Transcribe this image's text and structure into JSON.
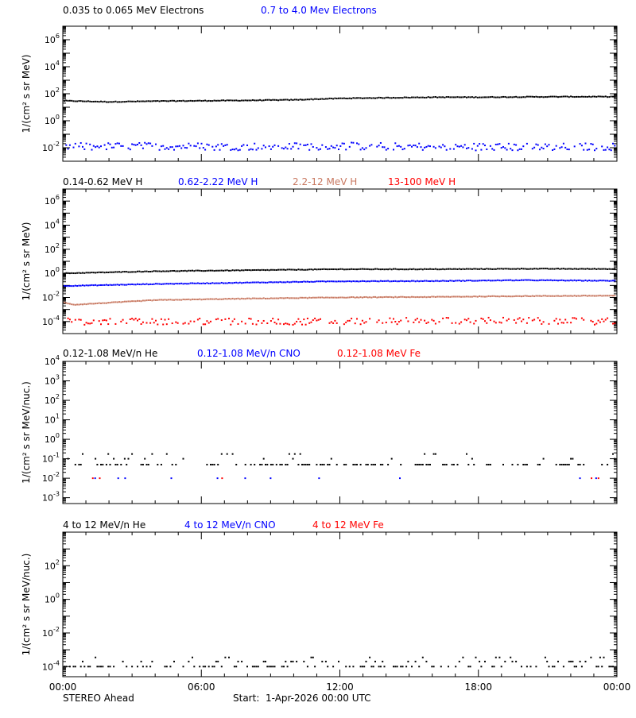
{
  "panels": [
    {
      "legend": [
        {
          "label": "0.035 to 0.065 MeV Electrons",
          "color": "#000000"
        },
        {
          "label": "0.7 to 4.0 Mev Electrons",
          "color": "#0000ff"
        }
      ],
      "ylabel": "1/(cm² s sr MeV)"
    },
    {
      "legend": [
        {
          "label": "0.14-0.62 MeV H",
          "color": "#000000"
        },
        {
          "label": "0.62-2.22 MeV H",
          "color": "#0000ff"
        },
        {
          "label": "2.2-12 MeV H",
          "color": "#c87860"
        },
        {
          "label": "13-100 MeV H",
          "color": "#ff0000"
        }
      ],
      "ylabel": "1/(cm² s sr MeV)"
    },
    {
      "legend": [
        {
          "label": "0.12-1.08 MeV/n He",
          "color": "#000000"
        },
        {
          "label": "0.12-1.08 MeV/n CNO",
          "color": "#0000ff"
        },
        {
          "label": "0.12-1.08 MeV Fe",
          "color": "#ff0000"
        }
      ],
      "ylabel": "1/(cm² s sr MeV/nuc.)"
    },
    {
      "legend": [
        {
          "label": "4 to 12 MeV/n He",
          "color": "#000000"
        },
        {
          "label": "4 to 12 MeV/n CNO",
          "color": "#0000ff"
        },
        {
          "label": "4 to 12 MeV Fe",
          "color": "#ff0000"
        }
      ],
      "ylabel": "1/(cm² s sr MeV/nuc.)"
    }
  ],
  "footer": {
    "spacecraft": "STEREO Ahead",
    "start": "Start:  1-Apr-2026 00:00 UTC"
  },
  "chart_data": [
    {
      "type": "scatter",
      "x_unit": "hours since start",
      "x_range": [
        0,
        24
      ],
      "x_ticks": [
        "00:00",
        "06:00",
        "12:00",
        "18:00",
        "00:00"
      ],
      "y_scale": "log",
      "y_range": [
        0.001,
        10000000
      ],
      "y_tick_exponents": [
        -2,
        0,
        2,
        4,
        6
      ],
      "series": [
        {
          "name": "0.035 to 0.065 MeV Electrons",
          "color": "#000000",
          "density": 1.0,
          "x": [
            0,
            2,
            4,
            6,
            8,
            10,
            12,
            14,
            16,
            18,
            20,
            22,
            24
          ],
          "y": [
            30,
            25,
            28,
            30,
            32,
            35,
            45,
            50,
            55,
            55,
            58,
            60,
            60
          ]
        },
        {
          "name": "0.7 to 4.0 Mev Electrons",
          "color": "#0000ff",
          "density": 0.85,
          "x": [
            0,
            4,
            8,
            12,
            16,
            20,
            24
          ],
          "y": [
            0.012,
            0.013,
            0.012,
            0.013,
            0.012,
            0.011,
            0.012
          ]
        }
      ]
    },
    {
      "type": "scatter",
      "x_unit": "hours since start",
      "x_range": [
        0,
        24
      ],
      "x_ticks": [
        "00:00",
        "06:00",
        "12:00",
        "18:00",
        "00:00"
      ],
      "y_scale": "log",
      "y_range": [
        1e-05,
        10000000
      ],
      "y_tick_exponents": [
        -4,
        -2,
        0,
        2,
        4,
        6
      ],
      "series": [
        {
          "name": "0.14-0.62 MeV H",
          "color": "#000000",
          "density": 1.0,
          "x": [
            0,
            4,
            8,
            12,
            16,
            20,
            24
          ],
          "y": [
            1.0,
            1.5,
            1.8,
            2.2,
            2.2,
            2.4,
            2.3
          ]
        },
        {
          "name": "0.62-2.22 MeV H",
          "color": "#0000ff",
          "density": 1.0,
          "x": [
            0,
            4,
            8,
            12,
            16,
            20,
            24
          ],
          "y": [
            0.09,
            0.13,
            0.17,
            0.22,
            0.23,
            0.27,
            0.24
          ]
        },
        {
          "name": "2.2-12 MeV H",
          "color": "#c87860",
          "density": 1.0,
          "x": [
            0,
            0.5,
            4,
            8,
            12,
            16,
            20,
            24
          ],
          "y": [
            0.004,
            0.0025,
            0.006,
            0.008,
            0.01,
            0.011,
            0.013,
            0.014
          ]
        },
        {
          "name": "13-100 MeV H",
          "color": "#ff0000",
          "density": 0.7,
          "x": [
            0,
            6,
            12,
            18,
            24
          ],
          "y": [
            0.0001,
            0.0001,
            0.0001,
            0.00012,
            0.0001
          ]
        }
      ]
    },
    {
      "type": "scatter",
      "x_unit": "hours since start",
      "x_range": [
        0,
        24
      ],
      "x_ticks": [
        "00:00",
        "06:00",
        "12:00",
        "18:00",
        "00:00"
      ],
      "y_scale": "log",
      "y_range": [
        0.0005,
        10000
      ],
      "y_tick_exponents": [
        -3,
        -2,
        -1,
        0,
        1,
        2,
        3,
        4
      ],
      "series": [
        {
          "name": "0.12-1.08 MeV/n He",
          "color": "#000000",
          "density": 0.45,
          "x": [
            0,
            24
          ],
          "y": [
            0.05,
            0.05
          ]
        },
        {
          "name": "0.12-1.08 MeV/n CNO",
          "color": "#0000ff",
          "points": [
            [
              1.4,
              0.01
            ],
            [
              2.4,
              0.01
            ],
            [
              2.7,
              0.01
            ],
            [
              4.7,
              0.01
            ],
            [
              6.7,
              0.01
            ],
            [
              7.9,
              0.01
            ],
            [
              9.0,
              0.01
            ],
            [
              11.1,
              0.01
            ],
            [
              14.6,
              0.01
            ],
            [
              22.4,
              0.01
            ],
            [
              23.1,
              0.01
            ]
          ]
        },
        {
          "name": "0.12-1.08 MeV Fe",
          "color": "#ff0000",
          "points": [
            [
              1.3,
              0.01
            ],
            [
              1.6,
              0.01
            ],
            [
              6.9,
              0.01
            ],
            [
              22.9,
              0.01
            ],
            [
              23.2,
              0.01
            ]
          ]
        }
      ]
    },
    {
      "type": "scatter",
      "x_unit": "hours since start",
      "x_range": [
        0,
        24
      ],
      "x_ticks": [
        "00:00",
        "06:00",
        "12:00",
        "18:00",
        "00:00"
      ],
      "y_scale": "log",
      "y_range": [
        2.5e-05,
        10000
      ],
      "y_tick_exponents": [
        -4,
        -2,
        0,
        2
      ],
      "series": [
        {
          "name": "4 to 12 MeV/n He",
          "color": "#000000",
          "density": 0.45,
          "x": [
            0,
            24
          ],
          "y": [
            0.0001,
            0.0001
          ]
        },
        {
          "name": "4 to 12 MeV/n CNO",
          "color": "#0000ff",
          "points": []
        },
        {
          "name": "4 to 12 MeV Fe",
          "color": "#ff0000",
          "points": []
        }
      ]
    }
  ]
}
